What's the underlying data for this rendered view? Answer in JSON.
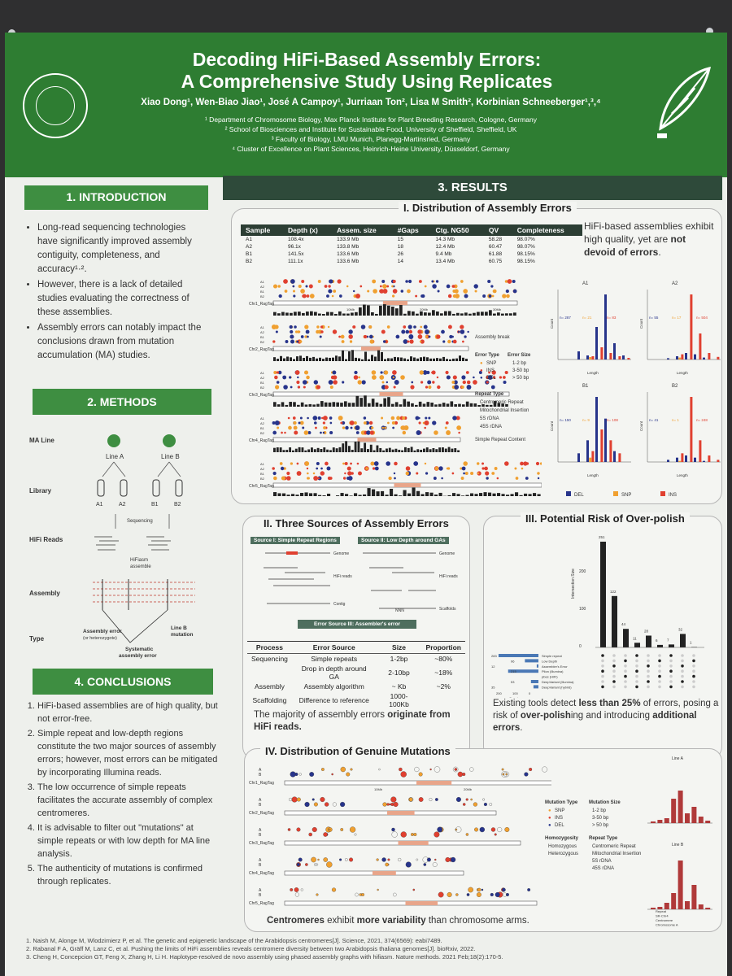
{
  "header": {
    "title_line1": "Decoding HiFi-Based Assembly Errors:",
    "title_line2": "A Comprehensive Study Using Replicates",
    "authors": "Xiao Dong¹, Wen-Biao Jiao¹, José A Campoy¹, Jurriaan Ton², Lisa M Smith², Korbinian Schneeberger¹,³,⁴",
    "affiliations": [
      "¹ Department of Chromosome Biology, Max Planck Institute for Plant Breeding Research, Cologne, Germany",
      "² School of Biosciences and Institute for Sustainable Food, University of Sheffield, Sheffield, UK",
      "³ Faculty of Biology, LMU Munich, Planegg-Martinsried, Germany",
      "⁴ Cluster of Excellence on Plant Sciences, Heinrich-Heine University, Düsseldorf, Germany"
    ]
  },
  "introduction": {
    "heading": "1. INTRODUCTION",
    "bullets": [
      "Long-read sequencing technologies have significantly improved assembly contiguity, completeness, and accuracy¹·².",
      "However, there is a lack of detailed studies evaluating the correctness of these assemblies.",
      "Assembly errors can notably impact the conclusions drawn from mutation accumulation (MA) studies."
    ]
  },
  "methods": {
    "heading": "2. METHODS",
    "labels": {
      "ma_line": "MA Line",
      "line_a": "Line A",
      "line_b": "Line B",
      "library": "Library",
      "hifi_reads": "HiFi Reads",
      "assembly": "Assembly",
      "type": "Type",
      "sequencing": "Sequencing",
      "hifiasm": "HiFiasm",
      "assemble": "assemble",
      "a1": "A1",
      "a2": "A2",
      "b1": "B1",
      "b2": "B2",
      "assembly_error": "Assembly error",
      "heterozygote": "(or heterozygote)",
      "systematic": "Systematic",
      "systematic2": "assembly error",
      "line_b_mutation": "Line B",
      "mutation": "mutation"
    }
  },
  "conclusions": {
    "heading": "4. CONCLUSIONS",
    "items": [
      "HiFi-based assemblies are of high quality, but not error-free.",
      "Simple repeat and low-depth regions constitute the two major sources of assembly errors; however, most errors can be mitigated by incorporating Illumina reads.",
      "The low occurrence of simple repeats facilitates the accurate assembly of complex centromeres.",
      "It is advisable to filter out \"mutations\" at simple repeats or with low depth for MA line analysis.",
      "The authenticity of mutations is confirmed through replicates."
    ]
  },
  "results": {
    "heading": "3. RESULTS",
    "sec1": {
      "title": "I. Distribution of Assembly Errors",
      "table_headers": [
        "Sample",
        "Depth (x)",
        "Assem. size",
        "#Gaps",
        "Ctg. NG50",
        "QV",
        "Completeness"
      ],
      "table_rows": [
        [
          "A1",
          "108.4x",
          "133.9 Mb",
          "15",
          "14.3 Mb",
          "58.28",
          "98.07%"
        ],
        [
          "A2",
          "96.1x",
          "133.8 Mb",
          "18",
          "12.4 Mb",
          "60.47",
          "98.07%"
        ],
        [
          "B1",
          "141.5x",
          "133.6 Mb",
          "26",
          "9.4 Mb",
          "61.88",
          "98.15%"
        ],
        [
          "B2",
          "111.1x",
          "133.6 Mb",
          "14",
          "13.4 Mb",
          "60.75",
          "98.15%"
        ]
      ],
      "summary_plain": "HiFi-based assemblies exhibit high quality, yet are",
      "summary_bold": "not devoid of errors",
      "chromosomes": [
        "Chr1_RagTag",
        "Chr2_RagTag",
        "Chr3_RagTag",
        "Chr4_RagTag",
        "Chr5_RagTag"
      ],
      "mb_ticks": [
        "10Mb",
        "20Mb",
        "30Mb"
      ],
      "legend": {
        "assembly_break": "Assembly break",
        "error_type": "Error Type",
        "error_size": "Error Size",
        "snp": "SNP",
        "ins": "INS",
        "del": "DEL",
        "s1": "1-2 bp",
        "s2": "3-50 bp",
        "s3": "> 50 bp",
        "repeat_type": "Repeat Type",
        "r1": "Centromeric Repeat",
        "r2": "Mitochondrial Insertion",
        "r3": "5S rDNA",
        "r4": "45S rDNA",
        "r5": "Simple Repeat Content"
      },
      "bar_legend": [
        "DEL",
        "SNP",
        "INS"
      ],
      "bar_panels": [
        {
          "name": "A1",
          "del": "n= 287",
          "snp": "n= 21",
          "ins": "n= 83"
        },
        {
          "name": "A2",
          "del": "n= 55",
          "snp": "n= 17",
          "ins": "n= 504"
        },
        {
          "name": "B1",
          "del": "n= 150",
          "snp": "n= 9",
          "ins": "n= 108"
        },
        {
          "name": "B2",
          "del": "n= 41",
          "snp": "n= 1",
          "ins": "n= 248"
        }
      ],
      "axis_count": "Count",
      "axis_length": "Length"
    },
    "sec2": {
      "title": "II. Three Sources of Assembly Errors",
      "src1": "Source I: Simple Repeat Regions",
      "src2": "Source II: Low Depth around GAs",
      "src3": "Error Source III: Assembler's error",
      "labels": {
        "genome": "Genome",
        "hifi_reads": "HiFi reads",
        "contig": "Contig",
        "scaffolds": "Scaffolds",
        "nnn": "NNN"
      },
      "table_headers": [
        "Process",
        "Error Source",
        "Size",
        "Proportion"
      ],
      "table_rows": [
        [
          "Sequencing",
          "Simple repeats",
          "1-2bp",
          "~80%"
        ],
        [
          "",
          "Drop in depth around GA",
          "2-10bp",
          "~18%"
        ],
        [
          "Assembly",
          "Assembly algorithm",
          "~ Kb",
          "~2%"
        ],
        [
          "Scaffolding",
          "Difference to reference",
          "1000-100Kb",
          ""
        ]
      ],
      "summary_plain": "The majority of assembly errors",
      "summary_bold": "originate from HiFi reads."
    },
    "sec3": {
      "title": "III. Potential Risk of Over-polish",
      "axis_label": "Intersection Size",
      "y_ticks": [
        "200",
        "100",
        "0"
      ],
      "bar_labels": [
        "251",
        "122",
        "44",
        "11",
        "28",
        "6",
        "7",
        "32",
        "1"
      ],
      "set_labels": [
        "Simple repeat",
        "Low Depth",
        "Assembler's Error",
        "Pilon (Illumina)",
        "pbes (HiFi)",
        "DeepVariant (Illumina)",
        "DeepVariant (hybrid)"
      ],
      "set_sizes": [
        "283",
        "96",
        "12",
        "215",
        "",
        "53",
        "35"
      ],
      "set_axis": [
        "200",
        "100",
        "0"
      ],
      "set_axis_label": "Count",
      "summary_a": "Existing tools detect",
      "summary_b": "less than 25%",
      "summary_c": "of errors, posing a risk of",
      "summary_d": "over-polish",
      "summary_e": "ing and introducing",
      "summary_f": "additional errors",
      "summary_g": "."
    },
    "sec4": {
      "title": "IV. Distribution of Genuine Mutations",
      "chromosomes": [
        "Chr1_RagTag",
        "Chr2_RagTag",
        "Chr3_RagTag",
        "Chr4_RagTag",
        "Chr5_RagTag"
      ],
      "legend": {
        "mutation_type": "Mutation Type",
        "mutation_size": "Mutation Size",
        "snp": "SNP",
        "ins": "INS",
        "del": "DEL",
        "s1": "1-2 bp",
        "s2": "3-50 bp",
        "s3": "> 50 bp",
        "homozygosity": "Homozygosity",
        "homo": "Homozygous",
        "hetero": "Heterozygous",
        "repeat_type": "Repeat Type",
        "r1": "Centromeric Repeat",
        "r2": "Mitochondrial Insertion",
        "r3": "5S rDNA",
        "r4": "45S rDNA"
      },
      "bar_titles": [
        "Line A",
        "Line B"
      ],
      "bar_legend": [
        "Repeat",
        "SR-Chr4",
        "Centromere",
        "Chromosome A"
      ],
      "summary_bold1": "Centromeres",
      "summary_plain": "exhibit",
      "summary_bold2": "more variability",
      "summary_end": "than chromosome arms."
    }
  },
  "references": [
    "1.  Naish M, Alonge M, Wlodzimierz P, et al. The genetic and epigenetic landscape of the Arabidopsis centromeres[J]. Science, 2021, 374(6569): eabi7489.",
    "2.  Rabanal F A, Gräff M, Lanz C, et al. Pushing the limits of HiFi assemblies reveals centromere diversity between two Arabidopsis thaliana genomes[J]. bioRxiv, 2022.",
    "3.  Cheng H, Concepcion GT, Feng X, Zhang H, Li H. Haplotype-resolved de novo assembly using phased assembly graphs with hifiasm. Nature methods. 2021 Feb;18(2):170-5."
  ],
  "colors": {
    "banner": "#2e7d32",
    "section_green": "#3e8e41",
    "results_dark": "#2e4a3a",
    "del_blue": "#27348b",
    "snp_orange": "#f0a030",
    "ins_red": "#e04030",
    "background": "#2f2f30"
  }
}
